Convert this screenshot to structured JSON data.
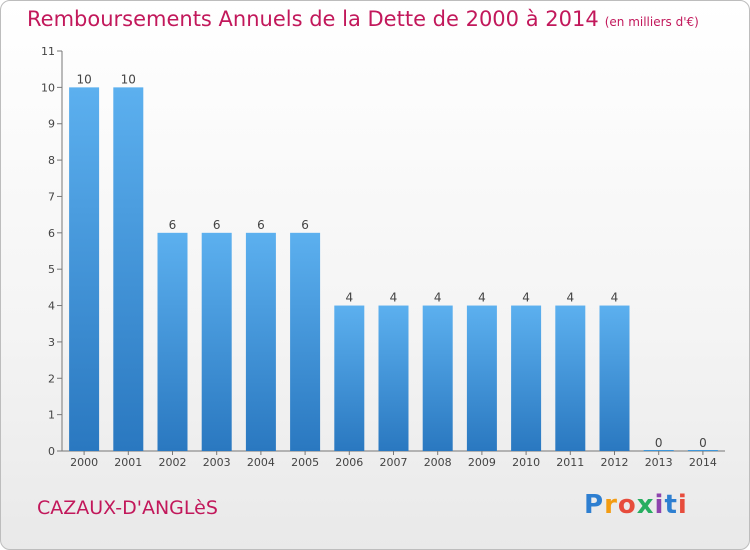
{
  "chart_data": {
    "type": "bar",
    "title": "Remboursements Annuels de la Dette de 2000 à 2014",
    "unit_note": "(en milliers d'€)",
    "categories": [
      "2000",
      "2001",
      "2002",
      "2003",
      "2004",
      "2005",
      "2006",
      "2007",
      "2008",
      "2009",
      "2010",
      "2011",
      "2012",
      "2013",
      "2014"
    ],
    "values": [
      10,
      10,
      6,
      6,
      6,
      6,
      4,
      4,
      4,
      4,
      4,
      4,
      4,
      0,
      0
    ],
    "ylim": [
      0,
      11
    ],
    "yticks": [
      0,
      1,
      2,
      3,
      4,
      5,
      6,
      7,
      8,
      9,
      10,
      11
    ],
    "grid": false,
    "bar_color": "#3f97da"
  },
  "location": "CAZAUX-D'ANGLèS",
  "logo": {
    "text": "Proxiti"
  }
}
